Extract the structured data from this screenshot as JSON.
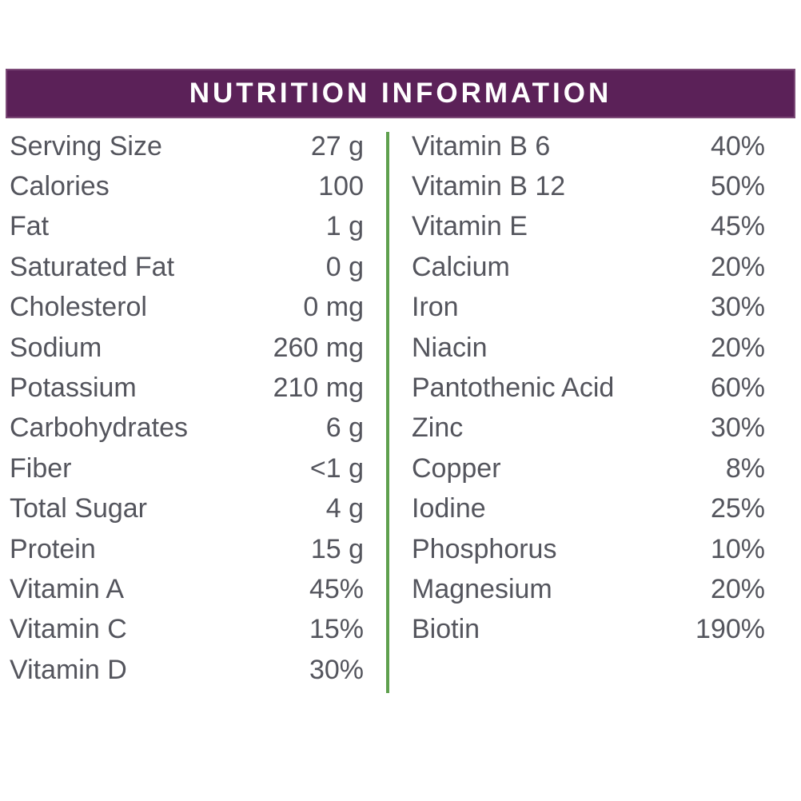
{
  "header": {
    "title": "NUTRITION INFORMATION"
  },
  "colors": {
    "header_background": "#5b2158",
    "header_text": "#ffffff",
    "divider_green": "#5fa04e",
    "body_text": "#54555d"
  },
  "table": {
    "left_rows": [
      {
        "label": "Serving Size",
        "value": "27 g"
      },
      {
        "label": "Calories",
        "value": "100"
      },
      {
        "label": "Fat",
        "value": "1 g"
      },
      {
        "label": "Saturated Fat",
        "value": "0 g"
      },
      {
        "label": "Cholesterol",
        "value": "0 mg"
      },
      {
        "label": "Sodium",
        "value": "260 mg"
      },
      {
        "label": "Potassium",
        "value": "210 mg"
      },
      {
        "label": "Carbohydrates",
        "value": "6 g"
      },
      {
        "label": "Fiber",
        "value": "<1 g"
      },
      {
        "label": "Total Sugar",
        "value": "4 g"
      },
      {
        "label": "Protein",
        "value": "15 g"
      },
      {
        "label": "Vitamin A",
        "value": "45%"
      },
      {
        "label": "Vitamin C",
        "value": "15%"
      },
      {
        "label": "Vitamin D",
        "value": "30%"
      }
    ],
    "right_rows": [
      {
        "label": "Vitamin B 6",
        "value": "40%"
      },
      {
        "label": "Vitamin B 12",
        "value": "50%"
      },
      {
        "label": "Vitamin E",
        "value": "45%"
      },
      {
        "label": "Calcium",
        "value": "20%"
      },
      {
        "label": "Iron",
        "value": "30%"
      },
      {
        "label": "Niacin",
        "value": "20%"
      },
      {
        "label": "Pantothenic Acid",
        "value": "60%"
      },
      {
        "label": "Zinc",
        "value": "30%"
      },
      {
        "label": "Copper",
        "value": "8%"
      },
      {
        "label": "Iodine",
        "value": "25%"
      },
      {
        "label": "Phosphorus",
        "value": "10%"
      },
      {
        "label": "Magnesium",
        "value": "20%"
      },
      {
        "label": "Biotin",
        "value": "190%"
      }
    ]
  }
}
